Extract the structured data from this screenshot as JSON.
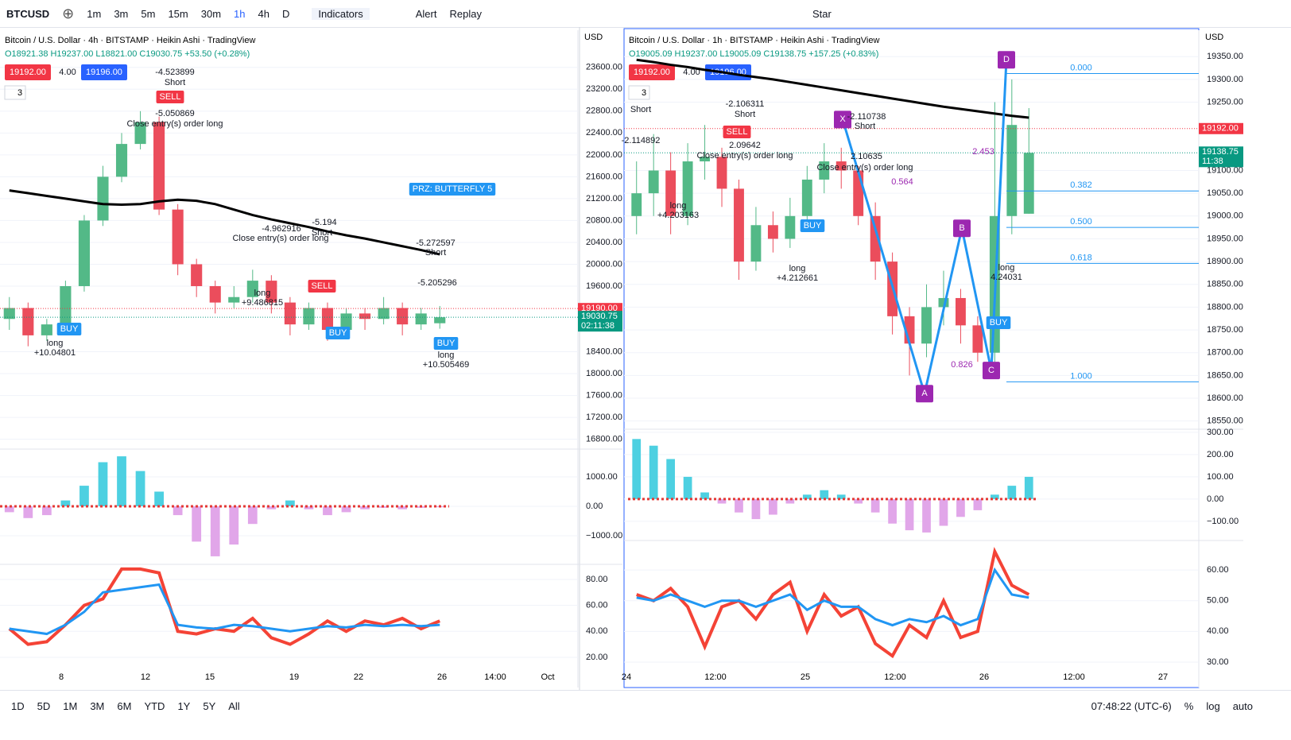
{
  "toolbar": {
    "symbol": "BTCUSD",
    "intervals": [
      "1m",
      "3m",
      "5m",
      "15m",
      "30m",
      "1h",
      "4h",
      "D"
    ],
    "indicators": "Indicators",
    "alert": "Alert",
    "replay": "Replay",
    "layout": "Star"
  },
  "panes": [
    {
      "title": "Bitcoin / U.S. Dollar · 4h · BITSTAMP · Heikin Ashi · TradingView",
      "ohlc": "O18921.38 H19237.00 L18821.00 C19030.75 +53.50 (+0.28%)",
      "badges": [
        "19192.00",
        "4.00",
        "19196.00"
      ],
      "count": "3",
      "currency": "USD",
      "ylim": [
        16620,
        24280
      ],
      "yticks": [
        {
          "value": 23600,
          "label": "23600.00"
        },
        {
          "value": 23200,
          "label": "23200.00"
        },
        {
          "value": 22800,
          "label": "22800.00"
        },
        {
          "value": 22400,
          "label": "22400.00"
        },
        {
          "value": 22000,
          "label": "22000.00"
        },
        {
          "value": 21600,
          "label": "21600.00"
        },
        {
          "value": 21200,
          "label": "21200.00"
        },
        {
          "value": 20800,
          "label": "20800.00"
        },
        {
          "value": 20400,
          "label": "20400.00"
        },
        {
          "value": 20000,
          "label": "20000.00"
        },
        {
          "value": 19600,
          "label": "19600.00"
        },
        {
          "value": 18400,
          "label": "18400.00"
        },
        {
          "value": 18000,
          "label": "18000.00"
        },
        {
          "value": 17600,
          "label": "17600.00"
        },
        {
          "value": 17200,
          "label": "17200.00"
        },
        {
          "value": 16800,
          "label": "16800.00"
        }
      ],
      "last_price": {
        "value": 19190,
        "label": "19190.00"
      },
      "close": {
        "value": 19030.75,
        "label": "19030.75",
        "countdown": "02:11:38"
      },
      "time_labels": [
        "8",
        "12",
        "15",
        "19",
        "22",
        "26",
        "14:00",
        "Oct"
      ],
      "candles": {
        "open": [
          19000,
          19200,
          18700,
          18900,
          19600,
          20800,
          21600,
          22200,
          22600,
          21000,
          20000,
          19600,
          19300,
          19400,
          19700,
          19300,
          18900,
          19200,
          18800,
          19100,
          19000,
          19200,
          18900,
          18921.38
        ],
        "high": [
          19400,
          19300,
          19000,
          19700,
          20900,
          21800,
          22400,
          22800,
          22700,
          21100,
          20100,
          19700,
          19600,
          19900,
          19800,
          19400,
          19300,
          19300,
          19200,
          19200,
          19400,
          19300,
          19200,
          19237
        ],
        "low": [
          18800,
          18500,
          18600,
          18800,
          19500,
          20700,
          21500,
          22100,
          20900,
          19800,
          19400,
          19100,
          19200,
          19300,
          19100,
          18700,
          18800,
          18600,
          18700,
          18800,
          18900,
          18700,
          18800,
          18821
        ],
        "close": [
          19200,
          18700,
          18900,
          19600,
          20800,
          21600,
          22200,
          22600,
          21000,
          20000,
          19600,
          19300,
          19400,
          19700,
          19300,
          18900,
          19200,
          18800,
          19100,
          19000,
          19200,
          18900,
          19100,
          19030.75
        ]
      },
      "ma": [
        21350,
        21300,
        21250,
        21200,
        21150,
        21100,
        21090,
        21100,
        21150,
        21180,
        21160,
        21100,
        21000,
        20900,
        20820,
        20750,
        20680,
        20600,
        20530,
        20470,
        20400,
        20330,
        20260,
        20180
      ],
      "macd": {
        "ylim": [
          -1973,
          1946
        ],
        "yticks": [
          {
            "value": 1000,
            "label": "1000.00"
          },
          {
            "value": 0,
            "label": "0.00"
          },
          {
            "value": -1000,
            "label": "−1000.00"
          }
        ],
        "histogram": [
          -200,
          -400,
          -300,
          200,
          700,
          1500,
          1700,
          1200,
          500,
          -300,
          -1200,
          -1700,
          -1300,
          -600,
          -100,
          200,
          -100,
          -300,
          -200,
          -100,
          -50,
          -100,
          -50,
          -30
        ]
      },
      "rsi": {
        "ylim": [
          -3.3,
          91.6
        ],
        "yticks": [
          {
            "value": 80,
            "label": "80.00"
          },
          {
            "value": 60,
            "label": "60.00"
          },
          {
            "value": 40,
            "label": "40.00"
          },
          {
            "value": 20,
            "label": "20.00"
          }
        ],
        "series": [
          {
            "color": "#f44336",
            "values": [
              42,
              30,
              32,
              45,
              60,
              65,
              88,
              88,
              85,
              40,
              38,
              42,
              40,
              50,
              35,
              30,
              38,
              48,
              40,
              48,
              45,
              50,
              42,
              48
            ]
          },
          {
            "color": "#2196f3",
            "values": [
              42,
              40,
              38,
              45,
              55,
              70,
              72,
              74,
              76,
              45,
              43,
              42,
              45,
              44,
              42,
              40,
              42,
              44,
              43,
              45,
              44,
              45,
              44,
              45
            ]
          }
        ]
      },
      "annotations": [
        {
          "text": "-4.523899"
        },
        {
          "text": "Short"
        },
        {
          "text": "SELL",
          "color": "#f23645"
        },
        {
          "text": "-5.050869"
        },
        {
          "text": "Close entry(s) order long"
        },
        {
          "text": "BUY",
          "color": "#2196f3"
        },
        {
          "text": "long"
        },
        {
          "text": "+10.04801"
        },
        {
          "text": "-4.962916"
        },
        {
          "text": "-5.194"
        },
        {
          "text": "Short"
        },
        {
          "text": "Close entry(s) order long"
        },
        {
          "text": "PRZ: BUTTERFLY 5",
          "color": "#2196f3"
        },
        {
          "text": "-5.272597"
        },
        {
          "text": "Short"
        },
        {
          "text": "-5.205296"
        },
        {
          "text": "BUY",
          "color": "#2196f3"
        },
        {
          "text": "long"
        },
        {
          "text": "+10.505469"
        },
        {
          "text": "long"
        },
        {
          "text": "+9.486815"
        },
        {
          "text": "SELL",
          "color": "#f23645"
        },
        {
          "text": "BUY",
          "color": "#2196f3"
        }
      ]
    },
    {
      "title": "Bitcoin / U.S. Dollar · 1h · BITSTAMP · Heikin Ashi · TradingView",
      "ohlc": "O19005.09 H19237.00 L19005.09 C19138.75 +157.25 (+0.83%)",
      "badges": [
        "19192.00",
        "4.00",
        "19196.00"
      ],
      "count": "3",
      "currency": "USD",
      "ylim": [
        18532,
        19408
      ],
      "yticks": [
        {
          "value": 19350,
          "label": "19350.00"
        },
        {
          "value": 19300,
          "label": "19300.00"
        },
        {
          "value": 19250,
          "label": "19250.00"
        },
        {
          "value": 19100,
          "label": "19100.00"
        },
        {
          "value": 19050,
          "label": "19050.00"
        },
        {
          "value": 19000,
          "label": "19000.00"
        },
        {
          "value": 18950,
          "label": "18950.00"
        },
        {
          "value": 18900,
          "label": "18900.00"
        },
        {
          "value": 18850,
          "label": "18850.00"
        },
        {
          "value": 18800,
          "label": "18800.00"
        },
        {
          "value": 18750,
          "label": "18750.00"
        },
        {
          "value": 18700,
          "label": "18700.00"
        },
        {
          "value": 18650,
          "label": "18650.00"
        },
        {
          "value": 18600,
          "label": "18600.00"
        },
        {
          "value": 18550,
          "label": "18550.00"
        }
      ],
      "last_price": {
        "value": 19192,
        "label": "19192.00"
      },
      "close": {
        "value": 19138.75,
        "label": "19138.75",
        "countdown": "11:38"
      },
      "time_labels": [
        "24",
        "12:00",
        "25",
        "12:00",
        "26",
        "12:00",
        "27"
      ],
      "candles": {
        "open": [
          19000,
          19050,
          19100,
          19000,
          19120,
          19130,
          19060,
          18900,
          18980,
          18950,
          19000,
          19080,
          19120,
          19100,
          19000,
          18900,
          18780,
          18720,
          18800,
          18820,
          18760,
          18700,
          19000,
          19005.09
        ],
        "high": [
          19120,
          19180,
          19140,
          19160,
          19200,
          19150,
          19080,
          19020,
          19010,
          19040,
          19110,
          19160,
          19150,
          19110,
          19030,
          18920,
          18800,
          18850,
          18880,
          18840,
          18780,
          19250,
          19300,
          19237
        ],
        "low": [
          18960,
          19000,
          18960,
          18980,
          19080,
          19020,
          18860,
          18880,
          18920,
          18930,
          18980,
          19050,
          19060,
          18980,
          18860,
          18740,
          18650,
          18690,
          18760,
          18720,
          18680,
          18680,
          18960,
          19005.09
        ],
        "close": [
          19050,
          19100,
          19000,
          19120,
          19130,
          19060,
          18900,
          18980,
          18950,
          19000,
          19080,
          19120,
          19100,
          19000,
          18900,
          18780,
          18720,
          18800,
          18820,
          18760,
          18700,
          19000,
          19200,
          19138.75
        ]
      },
      "ma": [
        19343,
        19338,
        19332,
        19327,
        19321,
        19316,
        19310,
        19305,
        19300,
        19294,
        19288,
        19282,
        19276,
        19270,
        19264,
        19258,
        19252,
        19246,
        19240,
        19235,
        19230,
        19225,
        19220,
        19216
      ],
      "macd": {
        "ylim": [
          -186,
          314
        ],
        "yticks": [
          {
            "value": 300,
            "label": "300.00"
          },
          {
            "value": 200,
            "label": "200.00"
          },
          {
            "value": 100,
            "label": "100.00"
          },
          {
            "value": 0,
            "label": "0.00"
          },
          {
            "value": -100,
            "label": "−100.00"
          }
        ],
        "histogram": [
          270,
          240,
          180,
          100,
          30,
          -20,
          -60,
          -90,
          -70,
          -20,
          20,
          40,
          20,
          -20,
          -60,
          -110,
          -140,
          -150,
          -120,
          -80,
          -50,
          20,
          60,
          100
        ]
      },
      "rsi": {
        "ylim": [
          21.7,
          69.6
        ],
        "yticks": [
          {
            "value": 60,
            "label": "60.00"
          },
          {
            "value": 50,
            "label": "50.00"
          },
          {
            "value": 40,
            "label": "40.00"
          },
          {
            "value": 30,
            "label": "30.00"
          }
        ],
        "series": [
          {
            "color": "#f44336",
            "values": [
              52,
              50,
              54,
              48,
              35,
              48,
              50,
              44,
              52,
              56,
              40,
              52,
              45,
              48,
              36,
              32,
              42,
              38,
              50,
              38,
              40,
              66,
              55,
              52
            ]
          },
          {
            "color": "#2196f3",
            "values": [
              51,
              50,
              52,
              50,
              48,
              50,
              50,
              48,
              50,
              52,
              47,
              50,
              48,
              48,
              44,
              42,
              44,
              43,
              45,
              42,
              44,
              60,
              52,
              51
            ]
          }
        ]
      },
      "fib": [
        {
          "label": "0.000",
          "price": 19313
        },
        {
          "label": "0.382",
          "price": 19055
        },
        {
          "label": "0.500",
          "price": 18975
        },
        {
          "label": "0.618",
          "price": 18896
        },
        {
          "label": "1.000",
          "price": 18636
        }
      ],
      "harmonic": {
        "points": [
          {
            "label": "X",
            "price": 19212
          },
          {
            "label": "A",
            "price": 18610
          },
          {
            "label": "B",
            "price": 18973
          },
          {
            "label": "C",
            "price": 18661
          },
          {
            "label": "D",
            "price": 19343
          }
        ],
        "ratios": [
          "0.564",
          "0.826",
          "2.453"
        ]
      },
      "annotations": [
        {
          "text": "-2.106311"
        },
        {
          "text": "Short"
        },
        {
          "text": "SELL",
          "color": "#f23645"
        },
        {
          "text": "2.09642"
        },
        {
          "text": "Close entry(s) order long"
        },
        {
          "text": "long"
        },
        {
          "text": "+4.203163"
        },
        {
          "text": "BUY",
          "color": "#2196f3"
        },
        {
          "text": "long"
        },
        {
          "text": "+4.212661"
        },
        {
          "text": "-2.110738"
        },
        {
          "text": "Short"
        },
        {
          "text": "2.10635"
        },
        {
          "text": "Close entry(s) order long"
        },
        {
          "text": "BUY",
          "color": "#2196f3"
        },
        {
          "text": "long"
        },
        {
          "text": "4.24031"
        },
        {
          "text": "Short"
        },
        {
          "text": "-2.114892"
        }
      ]
    }
  ],
  "bottom_bar": {
    "ranges": [
      "1D",
      "5D",
      "1M",
      "3M",
      "6M",
      "YTD",
      "1Y",
      "5Y",
      "All"
    ],
    "clock": "07:48:22 (UTC-6)",
    "percent": "%",
    "log": "log",
    "auto": "auto"
  }
}
